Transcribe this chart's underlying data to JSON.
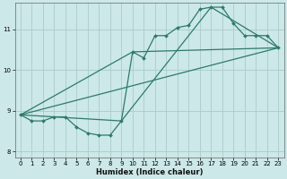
{
  "xlabel": "Humidex (Indice chaleur)",
  "bg_color": "#cce8e8",
  "grid_color": "#aacccc",
  "line_color": "#2d7a6a",
  "xlim": [
    -0.5,
    23.5
  ],
  "ylim": [
    7.85,
    11.65
  ],
  "xticks": [
    0,
    1,
    2,
    3,
    4,
    5,
    6,
    7,
    8,
    9,
    10,
    11,
    12,
    13,
    14,
    15,
    16,
    17,
    18,
    19,
    20,
    21,
    22,
    23
  ],
  "yticks": [
    8,
    9,
    10,
    11
  ],
  "series_main": {
    "x": [
      0,
      1,
      2,
      3,
      4,
      5,
      6,
      7,
      8,
      9,
      10,
      11,
      12,
      13,
      14,
      15,
      16,
      17,
      18,
      19,
      20,
      21,
      22,
      23
    ],
    "y": [
      8.9,
      8.75,
      8.75,
      8.85,
      8.85,
      8.6,
      8.45,
      8.4,
      8.4,
      8.75,
      10.45,
      10.3,
      10.85,
      10.85,
      11.05,
      11.1,
      11.5,
      11.55,
      11.55,
      11.15,
      10.85,
      10.85,
      10.85,
      10.55
    ]
  },
  "series_lines": [
    {
      "x": [
        0,
        23
      ],
      "y": [
        8.9,
        10.55
      ]
    },
    {
      "x": [
        0,
        9,
        17,
        23
      ],
      "y": [
        8.9,
        8.75,
        11.55,
        10.55
      ]
    },
    {
      "x": [
        0,
        10,
        23
      ],
      "y": [
        8.9,
        10.45,
        10.55
      ]
    }
  ]
}
